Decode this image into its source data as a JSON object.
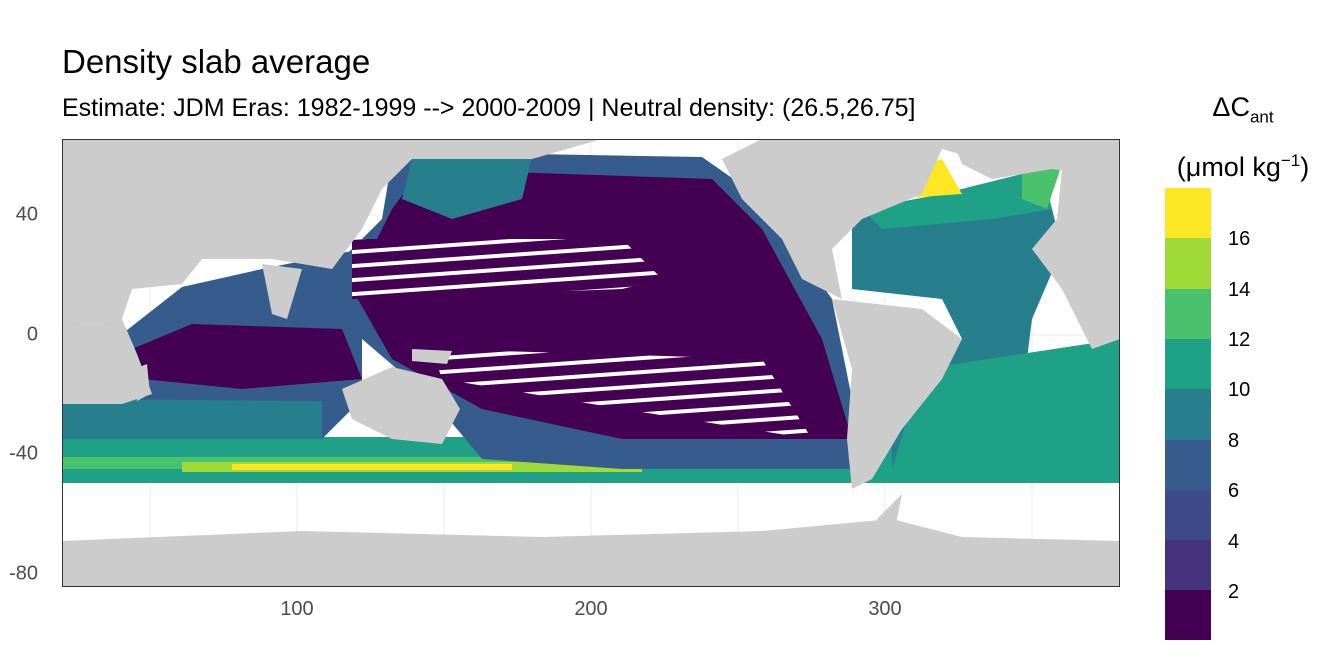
{
  "title": "Density slab average",
  "subtitle": "Estimate: JDM Eras: 1982-1999 --> 2000-2009 | Neutral density: (26.5,26.75]",
  "map": {
    "x_axis": {
      "ticks": [
        "100",
        "200",
        "300"
      ],
      "range": [
        20,
        380
      ]
    },
    "y_axis": {
      "ticks": [
        "40",
        "0",
        "-40",
        "-80"
      ],
      "range": [
        -85,
        65
      ]
    },
    "land_color": "#cccccc",
    "no_data_color": "#ffffff",
    "grid": true
  },
  "legend": {
    "title_prefix": "ΔC",
    "title_sub": "ant",
    "unit_prefix": "(μmol kg",
    "unit_sup": "−1",
    "unit_suffix": ")",
    "labels": [
      "16",
      "14",
      "12",
      "10",
      "8",
      "6",
      "4",
      "2"
    ],
    "colors": [
      "#FDE725",
      "#A0DA39",
      "#4AC16D",
      "#1FA187",
      "#277F8E",
      "#365C8D",
      "#46337E",
      "#440154"
    ]
  }
}
